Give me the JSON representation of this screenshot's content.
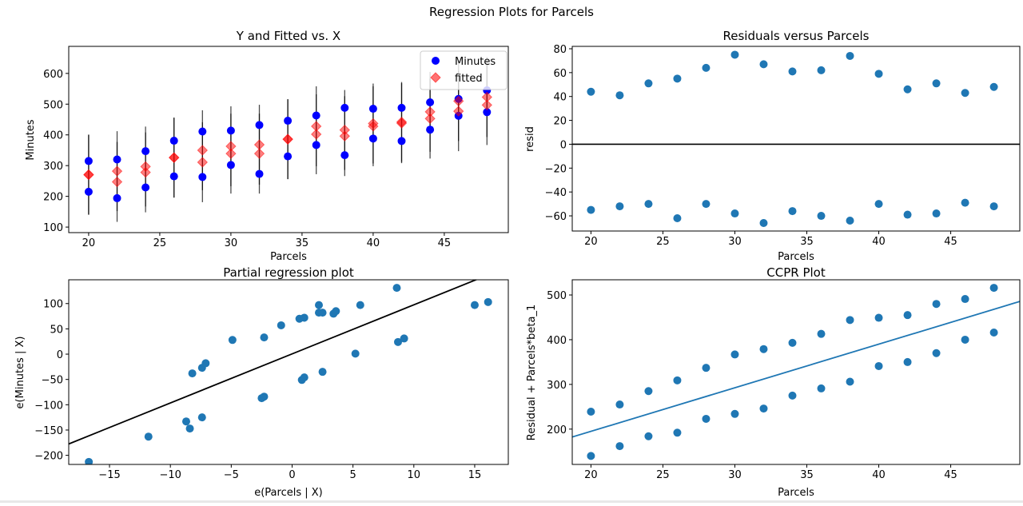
{
  "figure_title": "Regression Plots for Parcels",
  "colors": {
    "points": "#1f77b4",
    "minutes": "#0000ff",
    "fitted": "#ff0000",
    "line_black": "#000000",
    "fit_line": "#1f77b4"
  },
  "chart_data": [
    {
      "type": "scatter",
      "title": "Y and Fitted vs. X",
      "xlabel": "Parcels",
      "ylabel": "Minutes",
      "xlim": [
        18.6,
        49.5
      ],
      "ylim": [
        82,
        688
      ],
      "xticks": [
        20,
        25,
        30,
        35,
        40,
        45
      ],
      "yticks": [
        100,
        200,
        300,
        400,
        500,
        600
      ],
      "grid": false,
      "legend": "top-right",
      "interval_halfwidth": 130,
      "x": [
        20,
        20,
        22,
        22,
        24,
        24,
        26,
        26,
        28,
        28,
        30,
        30,
        32,
        32,
        34,
        34,
        36,
        36,
        38,
        38,
        40,
        40,
        42,
        42,
        44,
        44,
        46,
        46,
        48,
        48
      ],
      "series": [
        {
          "name": "Minutes",
          "marker": "circle",
          "values": [
            315,
            215,
            320,
            194,
            347,
            229,
            381,
            265,
            411,
            263,
            414,
            302,
            432,
            273,
            446,
            330,
            463,
            367,
            488,
            334,
            485,
            388,
            488,
            380,
            506,
            417,
            517,
            462,
            545,
            474
          ]
        },
        {
          "name": "fitted",
          "marker": "diamond",
          "values": [
            271,
            270,
            282,
            247,
            297,
            278,
            326,
            326,
            350,
            311,
            363,
            339,
            368,
            339,
            386,
            386,
            428,
            402,
            416,
            396,
            437,
            428,
            442,
            438,
            475,
            453,
            510,
            477,
            523,
            497
          ]
        }
      ]
    },
    {
      "type": "scatter",
      "title": "Residuals versus Parcels",
      "xlabel": "Parcels",
      "ylabel": "resid",
      "xlim": [
        18.7,
        49.8
      ],
      "ylim": [
        -72.7,
        82
      ],
      "xticks": [
        20,
        25,
        30,
        35,
        40,
        45
      ],
      "yticks": [
        -60,
        -40,
        -20,
        0,
        20,
        40,
        60,
        80
      ],
      "grid": false,
      "hline": 0,
      "x": [
        20,
        20,
        22,
        22,
        24,
        24,
        26,
        26,
        28,
        28,
        30,
        30,
        32,
        32,
        34,
        34,
        36,
        36,
        38,
        38,
        40,
        40,
        42,
        42,
        44,
        44,
        46,
        46,
        48,
        48
      ],
      "y": [
        44,
        -55,
        41,
        -52,
        51,
        -50,
        55,
        -62,
        64,
        -50,
        75,
        -58,
        67,
        -66,
        61,
        -56,
        62,
        -60,
        74,
        -64,
        59,
        -50,
        46,
        -59,
        51,
        -58,
        43,
        -49,
        48,
        -52
      ]
    },
    {
      "type": "scatter",
      "title": "Partial regression plot",
      "xlabel": "e(Parcels | X)",
      "ylabel": "e(Minutes | X)",
      "xlim": [
        -18.35,
        17.76
      ],
      "ylim": [
        -218,
        147
      ],
      "xticks": [
        -15,
        -10,
        -5,
        0,
        5,
        10,
        15
      ],
      "yticks": [
        -200,
        -150,
        -100,
        -50,
        0,
        50,
        100
      ],
      "grid": false,
      "fit_line": {
        "slope": 9.7,
        "intercept": 0.5
      },
      "x": [
        -16.7,
        -11.8,
        -8.7,
        -8.4,
        -8.2,
        -7.4,
        -7.1,
        -7.4,
        -4.9,
        -2.5,
        -2.3,
        -2.3,
        -0.9,
        0.6,
        1.0,
        0.8,
        1.0,
        2.2,
        2.2,
        2.5,
        2.5,
        3.4,
        3.6,
        5.2,
        5.6,
        8.6,
        8.7,
        9.2,
        15.0,
        16.1
      ],
      "y": [
        -213,
        -163,
        -133,
        -147,
        -38,
        -27,
        -18,
        -125,
        28,
        -87,
        -84,
        33,
        57,
        70,
        72,
        -51,
        -46,
        97,
        82,
        82,
        -35,
        80,
        85,
        1,
        97,
        131,
        24,
        31,
        97,
        103
      ]
    },
    {
      "type": "scatter",
      "title": "CCPR Plot",
      "xlabel": "Parcels",
      "ylabel": "Residual + Parcels*beta_1",
      "xlim": [
        18.7,
        49.8
      ],
      "ylim": [
        121,
        534
      ],
      "xticks": [
        20,
        25,
        30,
        35,
        40,
        45
      ],
      "yticks": [
        200,
        300,
        400,
        500
      ],
      "grid": false,
      "fit_line": {
        "slope": 9.75,
        "intercept": 0
      },
      "x": [
        20,
        20,
        22,
        22,
        24,
        24,
        26,
        26,
        28,
        28,
        30,
        30,
        32,
        32,
        34,
        34,
        36,
        36,
        38,
        38,
        40,
        40,
        42,
        42,
        44,
        44,
        46,
        46,
        48,
        48
      ],
      "y": [
        239,
        140,
        255,
        162,
        285,
        184,
        309,
        192,
        337,
        223,
        367,
        234,
        379,
        246,
        393,
        275,
        413,
        291,
        444,
        306,
        449,
        341,
        455,
        350,
        480,
        370,
        491,
        400,
        516,
        416
      ]
    }
  ]
}
